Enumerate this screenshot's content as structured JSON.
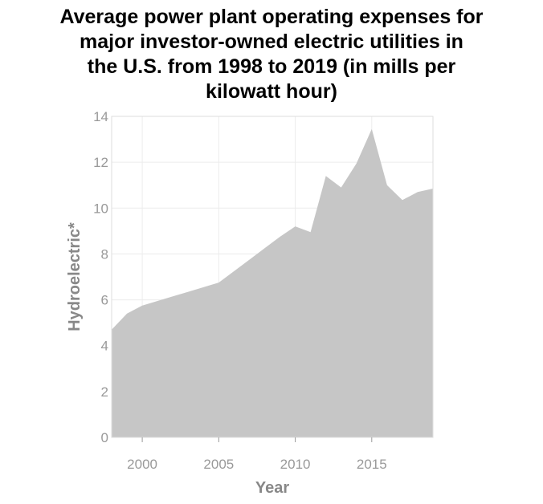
{
  "chart_data": {
    "type": "area",
    "title_lines": [
      "Average power plant operating expenses for",
      "major investor-owned electric utilities in",
      "the U.S. from 1998 to 2019 (in mills per",
      "kilowatt hour)"
    ],
    "xlabel": "Year",
    "ylabel": "Hydroelectric*",
    "xlim": [
      1998,
      2019
    ],
    "ylim": [
      0,
      14
    ],
    "xticks": [
      2000,
      2005,
      2010,
      2015
    ],
    "yticks": [
      0,
      2,
      4,
      6,
      8,
      10,
      12,
      14
    ],
    "grid": true,
    "fill_color": "#c6c6c6",
    "x": [
      1998,
      1999,
      2000,
      2001,
      2002,
      2003,
      2004,
      2005,
      2006,
      2007,
      2008,
      2009,
      2010,
      2011,
      2012,
      2013,
      2014,
      2015,
      2016,
      2017,
      2018,
      2019
    ],
    "series": [
      {
        "values": [
          4.7,
          5.4,
          5.75,
          5.95,
          6.15,
          6.35,
          6.55,
          6.75,
          7.25,
          7.75,
          8.25,
          8.75,
          9.2,
          8.95,
          11.4,
          10.9,
          11.95,
          13.45,
          11.0,
          10.35,
          10.7,
          10.85
        ]
      }
    ]
  }
}
